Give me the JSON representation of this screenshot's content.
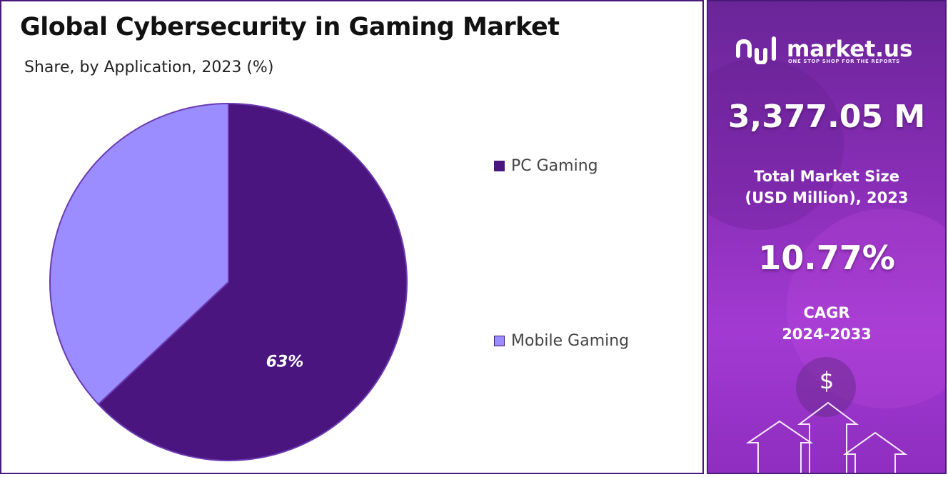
{
  "header": {
    "title": "Global Cybersecurity in Gaming Market",
    "subtitle": "Share, by Application, 2023 (%)"
  },
  "chart_data": {
    "type": "pie",
    "title": "Global Cybersecurity in Gaming Market",
    "subtitle": "Share, by Application, 2023 (%)",
    "categories": [
      "PC Gaming",
      "Mobile Gaming"
    ],
    "values": [
      63,
      37
    ],
    "data_labels": [
      "63%",
      ""
    ],
    "colors": [
      "#4b1580",
      "#9b8cff"
    ],
    "legend_position": "right"
  },
  "sidebar": {
    "brand_name": "market.us",
    "brand_tagline": "ONE STOP SHOP FOR THE REPORTS",
    "market_size_value": "3,377.05 M",
    "market_size_label_line1": "Total Market Size",
    "market_size_label_line2": "(USD Million), 2023",
    "cagr_value": "10.77%",
    "cagr_label_line1": "CAGR",
    "cagr_label_line2": "2024-2033",
    "dollar_symbol": "$"
  },
  "colors": {
    "accent": "#4a1a7a",
    "panel_top": "#6a2598",
    "panel_bottom": "#a23ad2"
  }
}
